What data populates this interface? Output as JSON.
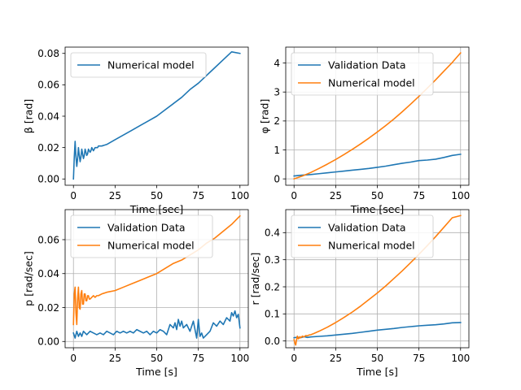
{
  "figure": {
    "background": "#ffffff"
  },
  "colors": {
    "validation": "#1f77b4",
    "numerical": "#ff7f0e"
  },
  "chart_data": [
    {
      "type": "line",
      "panel": "top-left",
      "xlabel": "Time [sec]",
      "ylabel": "β [rad]",
      "xlim": [
        -5,
        105
      ],
      "ylim": [
        -0.004,
        0.084
      ],
      "xticks": [
        0,
        25,
        50,
        75,
        100
      ],
      "yticks": [
        0.0,
        0.02,
        0.04,
        0.06,
        0.08
      ],
      "xtick_labels": [
        "0",
        "25",
        "50",
        "75",
        "100"
      ],
      "ytick_labels": [
        "0.00",
        "0.02",
        "0.04",
        "0.06",
        "0.08"
      ],
      "grid": false,
      "legend_position": "upper-left",
      "series": [
        {
          "name": "Numerical model",
          "color": "#1f77b4",
          "x": [
            0,
            0.5,
            1,
            1.5,
            2,
            2.5,
            3,
            3.5,
            4,
            4.5,
            5,
            5.5,
            6,
            6.5,
            7,
            7.5,
            8,
            8.5,
            9,
            9.5,
            10,
            10.5,
            11,
            11.5,
            12,
            12.5,
            13,
            13.5,
            14,
            14.5,
            15,
            17,
            20,
            25,
            30,
            35,
            40,
            45,
            50,
            55,
            60,
            65,
            70,
            75,
            80,
            85,
            90,
            95,
            100
          ],
          "y": [
            0.0,
            0.014,
            0.024,
            0.014,
            0.008,
            0.013,
            0.02,
            0.015,
            0.011,
            0.014,
            0.019,
            0.016,
            0.013,
            0.015,
            0.019,
            0.017,
            0.015,
            0.016,
            0.019,
            0.018,
            0.017,
            0.018,
            0.02,
            0.019,
            0.018,
            0.019,
            0.02,
            0.02,
            0.02,
            0.02,
            0.021,
            0.021,
            0.022,
            0.025,
            0.028,
            0.031,
            0.034,
            0.037,
            0.04,
            0.044,
            0.048,
            0.052,
            0.057,
            0.061,
            0.066,
            0.071,
            0.076,
            0.081,
            0.08
          ]
        }
      ]
    },
    {
      "type": "line",
      "panel": "top-right",
      "xlabel": "Time [sec]",
      "ylabel": "φ [rad]",
      "xlim": [
        -5,
        105
      ],
      "ylim": [
        -0.22,
        4.55
      ],
      "xticks": [
        0,
        25,
        50,
        75,
        100
      ],
      "yticks": [
        0,
        1,
        2,
        3,
        4
      ],
      "xtick_labels": [
        "0",
        "25",
        "50",
        "75",
        "100"
      ],
      "ytick_labels": [
        "0",
        "1",
        "2",
        "3",
        "4"
      ],
      "grid": true,
      "legend_position": "upper-left",
      "series": [
        {
          "name": "Validation Data",
          "color": "#1f77b4",
          "x": [
            0,
            5,
            10,
            15,
            20,
            25,
            30,
            35,
            40,
            45,
            50,
            55,
            60,
            65,
            70,
            75,
            80,
            85,
            90,
            95,
            100
          ],
          "y": [
            0.1,
            0.13,
            0.15,
            0.18,
            0.21,
            0.24,
            0.27,
            0.3,
            0.33,
            0.36,
            0.4,
            0.44,
            0.49,
            0.54,
            0.58,
            0.63,
            0.65,
            0.68,
            0.74,
            0.81,
            0.85
          ]
        },
        {
          "name": "Numerical model",
          "color": "#ff7f0e",
          "x": [
            0,
            5,
            10,
            15,
            20,
            25,
            30,
            35,
            40,
            45,
            50,
            55,
            60,
            65,
            70,
            75,
            80,
            85,
            90,
            95,
            100
          ],
          "y": [
            0.0,
            0.1,
            0.22,
            0.36,
            0.51,
            0.67,
            0.84,
            1.02,
            1.21,
            1.41,
            1.62,
            1.84,
            2.07,
            2.32,
            2.58,
            2.85,
            3.13,
            3.42,
            3.72,
            4.02,
            4.35
          ]
        }
      ]
    },
    {
      "type": "line",
      "panel": "bottom-left",
      "xlabel": "Time [s]",
      "ylabel": "p [rad/sec]",
      "xlim": [
        -5,
        105
      ],
      "ylim": [
        -0.0037,
        0.0777
      ],
      "xticks": [
        0,
        25,
        50,
        75,
        100
      ],
      "yticks": [
        0.0,
        0.02,
        0.04,
        0.06
      ],
      "xtick_labels": [
        "0",
        "25",
        "50",
        "75",
        "100"
      ],
      "ytick_labels": [
        "0.00",
        "0.02",
        "0.04",
        "0.06"
      ],
      "grid": true,
      "legend_position": "upper-left",
      "series": [
        {
          "name": "Validation Data",
          "color": "#1f77b4",
          "x": [
            0,
            1,
            2,
            3,
            4,
            5,
            6,
            8,
            10,
            12,
            14,
            16,
            18,
            20,
            22,
            24,
            26,
            28,
            30,
            32,
            34,
            36,
            38,
            40,
            42,
            44,
            46,
            48,
            50,
            52,
            54,
            56,
            58,
            60,
            61,
            62,
            63,
            64,
            65,
            66,
            68,
            70,
            72,
            74,
            75,
            76,
            77,
            78,
            80,
            82,
            84,
            86,
            88,
            90,
            92,
            94,
            95,
            96,
            97,
            98,
            99,
            100
          ],
          "y": [
            0.005,
            0.002,
            0.006,
            0.003,
            0.005,
            0.003,
            0.006,
            0.004,
            0.006,
            0.005,
            0.004,
            0.005,
            0.004,
            0.006,
            0.005,
            0.004,
            0.006,
            0.005,
            0.006,
            0.005,
            0.006,
            0.005,
            0.007,
            0.006,
            0.005,
            0.006,
            0.004,
            0.006,
            0.005,
            0.007,
            0.006,
            0.004,
            0.01,
            0.008,
            0.011,
            0.007,
            0.013,
            0.009,
            0.012,
            0.008,
            0.01,
            0.006,
            0.012,
            0.002,
            0.013,
            0.003,
            0.005,
            0.002,
            0.004,
            0.006,
            0.011,
            0.009,
            0.012,
            0.01,
            0.014,
            0.012,
            0.017,
            0.015,
            0.018,
            0.014,
            0.016,
            0.008
          ]
        },
        {
          "name": "Numerical model",
          "color": "#ff7f0e",
          "x": [
            0,
            0.5,
            1,
            1.5,
            2,
            2.5,
            3,
            3.5,
            4,
            4.5,
            5,
            5.5,
            6,
            6.5,
            7,
            7.5,
            8,
            8.5,
            9,
            9.5,
            10,
            11,
            12,
            13,
            14,
            15,
            17,
            20,
            25,
            30,
            35,
            40,
            45,
            50,
            55,
            60,
            65,
            70,
            75,
            80,
            85,
            90,
            95,
            100
          ],
          "y": [
            0.01,
            0.028,
            0.032,
            0.017,
            0.01,
            0.025,
            0.032,
            0.02,
            0.019,
            0.028,
            0.03,
            0.022,
            0.022,
            0.028,
            0.028,
            0.024,
            0.024,
            0.027,
            0.027,
            0.025,
            0.025,
            0.026,
            0.027,
            0.026,
            0.027,
            0.027,
            0.028,
            0.029,
            0.03,
            0.032,
            0.034,
            0.036,
            0.038,
            0.04,
            0.043,
            0.046,
            0.048,
            0.051,
            0.054,
            0.058,
            0.061,
            0.065,
            0.069,
            0.074
          ]
        }
      ]
    },
    {
      "type": "line",
      "panel": "bottom-right",
      "xlabel": "Time [s]",
      "ylabel": "r [rad/sec]",
      "xlim": [
        -5,
        105
      ],
      "ylim": [
        -0.025,
        0.485
      ],
      "xticks": [
        0,
        25,
        50,
        75,
        100
      ],
      "yticks": [
        0.0,
        0.1,
        0.2,
        0.3,
        0.4
      ],
      "xtick_labels": [
        "0",
        "25",
        "50",
        "75",
        "100"
      ],
      "ytick_labels": [
        "0.0",
        "0.1",
        "0.2",
        "0.3",
        "0.4"
      ],
      "grid": true,
      "legend_position": "upper-left",
      "series": [
        {
          "name": "Validation Data",
          "color": "#1f77b4",
          "x": [
            0,
            2,
            4,
            6,
            8,
            10,
            15,
            20,
            25,
            30,
            35,
            40,
            45,
            50,
            55,
            60,
            65,
            70,
            75,
            80,
            85,
            90,
            95,
            100
          ],
          "y": [
            0.012,
            0.014,
            0.012,
            0.016,
            0.013,
            0.015,
            0.017,
            0.019,
            0.022,
            0.025,
            0.028,
            0.032,
            0.036,
            0.04,
            0.043,
            0.046,
            0.05,
            0.053,
            0.056,
            0.058,
            0.06,
            0.063,
            0.067,
            0.068
          ]
        },
        {
          "name": "Numerical model",
          "color": "#ff7f0e",
          "x": [
            0,
            0.5,
            1,
            1.5,
            2,
            2.5,
            3,
            3.5,
            4,
            5,
            6,
            7,
            8,
            9,
            10,
            12,
            15,
            20,
            25,
            30,
            35,
            40,
            45,
            50,
            55,
            60,
            65,
            70,
            75,
            80,
            85,
            90,
            95,
            100
          ],
          "y": [
            0.005,
            -0.008,
            -0.015,
            0.005,
            0.018,
            0.008,
            0.01,
            0.016,
            0.012,
            0.018,
            0.015,
            0.02,
            0.019,
            0.022,
            0.023,
            0.028,
            0.036,
            0.051,
            0.068,
            0.087,
            0.107,
            0.129,
            0.153,
            0.177,
            0.203,
            0.231,
            0.259,
            0.289,
            0.32,
            0.352,
            0.385,
            0.42,
            0.455,
            0.463
          ]
        }
      ]
    }
  ]
}
